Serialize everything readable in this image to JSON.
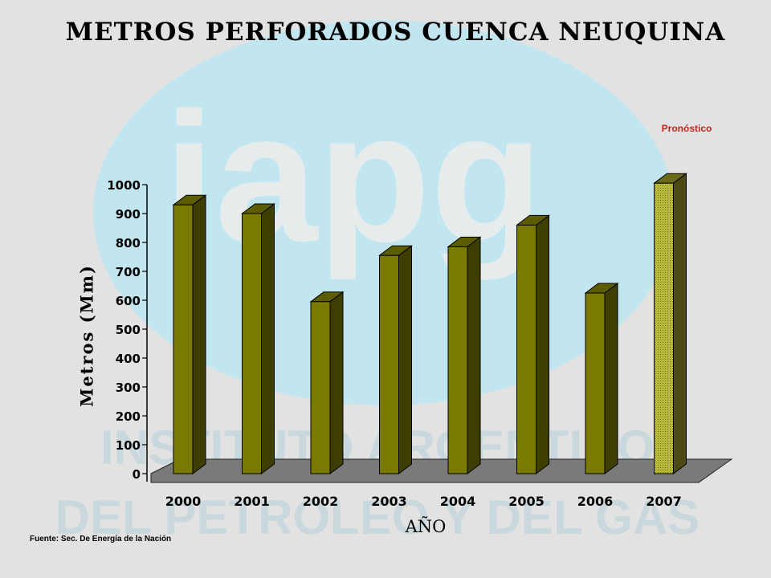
{
  "title": "METROS PERFORADOS CUENCA NEUQUINA",
  "forecast_label": "Pronóstico",
  "source": "Fuente: Sec. De Energía de la Nación",
  "watermark": {
    "logo_text": "iapg",
    "line1": "INSTITUTO ARGENTINO",
    "line2": "DEL PETROLEO Y DEL GAS"
  },
  "colors": {
    "background": "#e2e2e2",
    "bar_front": "#7a7a00",
    "bar_top": "#5c5c00",
    "bar_side": "#3e3e00",
    "forecast_front": "#b8b83a",
    "forecast_side": "#4a4a12",
    "floor": "#7a7a7a",
    "forecast_text": "#c0281e",
    "watermark_ellipse": "#c2e6f0",
    "watermark_logo": "#e6ecec",
    "watermark_text": "#c9d8dc"
  },
  "chart_data": {
    "type": "bar",
    "title": "METROS PERFORADOS CUENCA NEUQUINA",
    "xlabel": "AÑO",
    "ylabel": "Metros (Mm)",
    "categories": [
      "2000",
      "2001",
      "2002",
      "2003",
      "2004",
      "2005",
      "2006",
      "2007"
    ],
    "values": [
      930,
      900,
      595,
      755,
      785,
      860,
      625,
      1005
    ],
    "forecast_categories": [
      "2007"
    ],
    "ylim": [
      0,
      1000
    ],
    "yticks": [
      0,
      100,
      200,
      300,
      400,
      500,
      600,
      700,
      800,
      900,
      1000
    ],
    "grid": false,
    "style": "3d"
  }
}
